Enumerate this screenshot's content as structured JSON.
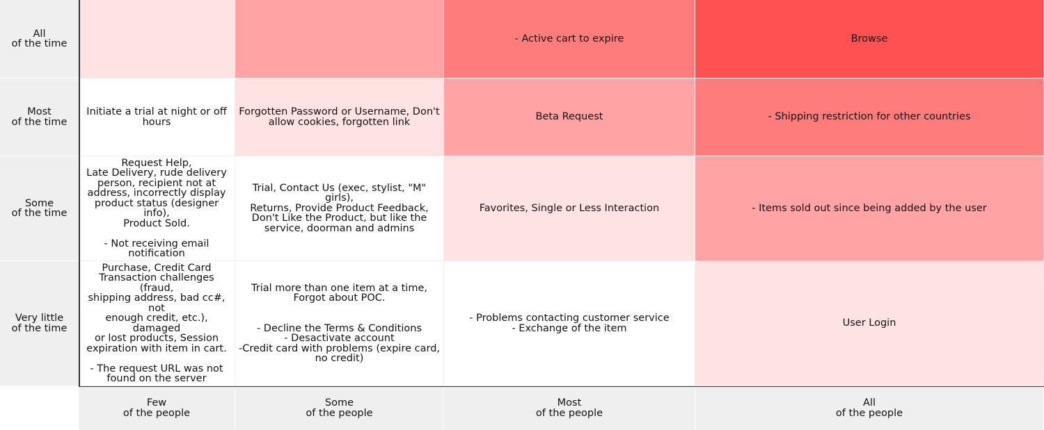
{
  "colors": {
    "level_0": "#ffffff",
    "level_1": "#ffe3e3",
    "level_2": "#ffa3a5",
    "level_3": "#ff7c7c",
    "level_4": "#ff5151",
    "header_bg": "#efefef",
    "axis": "#333333"
  },
  "rows": [
    {
      "label": "All\nof the time",
      "cells": [
        {
          "text": "",
          "level": 1
        },
        {
          "text": "",
          "level": 2
        },
        {
          "text": "- Active cart to expire",
          "level": 3
        },
        {
          "text": "Browse",
          "level": 4
        }
      ]
    },
    {
      "label": "Most\nof the time",
      "cells": [
        {
          "text": "Initiate a trial at night or off\nhours",
          "level": 0
        },
        {
          "text": "Forgotten Password or Username, Don't\nallow cookies, forgotten link",
          "level": 1
        },
        {
          "text": "Beta Request",
          "level": 2
        },
        {
          "text": "- Shipping restriction for other countries",
          "level": 3
        }
      ]
    },
    {
      "label": "Some\nof the time",
      "cells": [
        {
          "text": "Request Help,\nLate Delivery, rude delivery\nperson, recipient not at\naddress, incorrectly display\nproduct status (designer info),\nProduct Sold.\n\n- Not receiving email\nnotification",
          "level": 0
        },
        {
          "text": "Trial, Contact Us (exec, stylist, \"M\" girls),\nReturns, Provide Product Feedback,\nDon't Like the Product, but like the\nservice, doorman and admins",
          "level": 0
        },
        {
          "text": "Favorites, Single or Less Interaction",
          "level": 1
        },
        {
          "text": "- Items sold out since being added by the user",
          "level": 2
        }
      ]
    },
    {
      "label": "Very little\nof the time",
      "cells": [
        {
          "text": "Purchase, Credit Card\nTransaction challenges (fraud,\nshipping address, bad cc#, not\nenough credit, etc.), damaged\nor lost products, Session\nexpiration with item in cart.\n\n- The request URL was not\nfound on the server",
          "level": 0
        },
        {
          "text": "Trial more than one item at a time,\nForgot about POC.\n\n\n- Decline the Terms & Conditions\n- Desactivate account\n-Credit card with problems (expire card,\nno credit)",
          "level": 0
        },
        {
          "text": "- Problems contacting customer service\n- Exchange of the item",
          "level": 0
        },
        {
          "text": "User Login",
          "level": 1
        }
      ]
    }
  ],
  "columns": [
    "Few\nof the people",
    "Some\nof the people",
    "Most\nof the people",
    "All\nof the people"
  ]
}
